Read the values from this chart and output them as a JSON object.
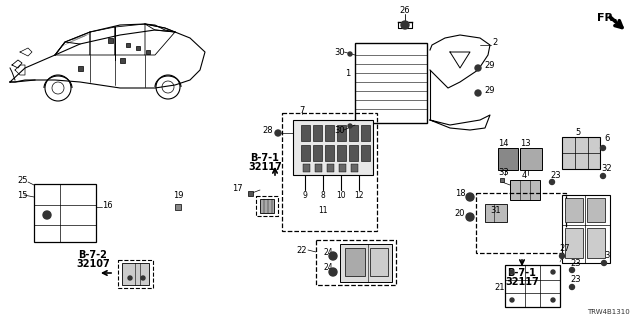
{
  "diagram_code": "TRW4B1310",
  "background_color": "#ffffff",
  "line_color": "#000000",
  "figsize": [
    6.4,
    3.2
  ],
  "dpi": 100,
  "fr_text": "FR.",
  "b71_text": [
    "B-7-1",
    "32117"
  ],
  "b72_text": [
    "B-7-2",
    "32107"
  ]
}
